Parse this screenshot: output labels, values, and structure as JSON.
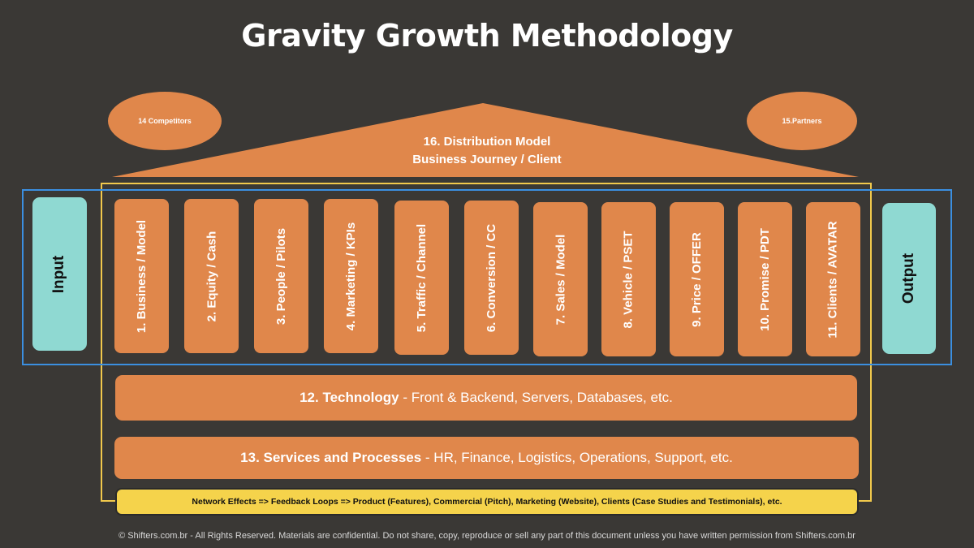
{
  "title": "Gravity Growth Methodology",
  "competitors": "14 Competitors",
  "partners": "15.Partners",
  "roof": {
    "line1": "16. Distribution Model",
    "line2": "Business Journey / Client"
  },
  "input_label": "Input",
  "output_label": "Output",
  "pillars": [
    "1. Business / Model",
    "2. Equity / Cash",
    "3. People / Pilots",
    "4. Marketing / KPIs",
    "5. Traffic / Channel",
    "6. Conversion / CC",
    "7. Sales / Model",
    "8. Vehicle / PSET",
    "9. Price / OFFER",
    "10. Promise / PDT",
    "11. Clients / AVATAR"
  ],
  "technology": {
    "bold": "12. Technology",
    "rest": " - Front & Backend, Servers, Databases, etc."
  },
  "services": {
    "bold": "13. Services and Processes",
    "rest": " - HR, Finance, Logistics, Operations, Support, etc."
  },
  "network_effects": "Network Effects => Feedback Loops => Product (Features),  Commercial (Pitch), Marketing (Website), Clients (Case Studies and Testimonials), etc.",
  "footer": "© Shifters.com.br - All Rights Reserved. Materials are confidential. Do not share, copy, reproduce or sell any part of this document unless you have written permission from Shifters.com.br",
  "colors": {
    "background": "#3a3835",
    "orange": "#e0874b",
    "teal": "#8fd9d2",
    "yellow": "#f5d34b",
    "blue_frame": "#3b8fe0",
    "yellow_frame": "#f2c94c"
  }
}
